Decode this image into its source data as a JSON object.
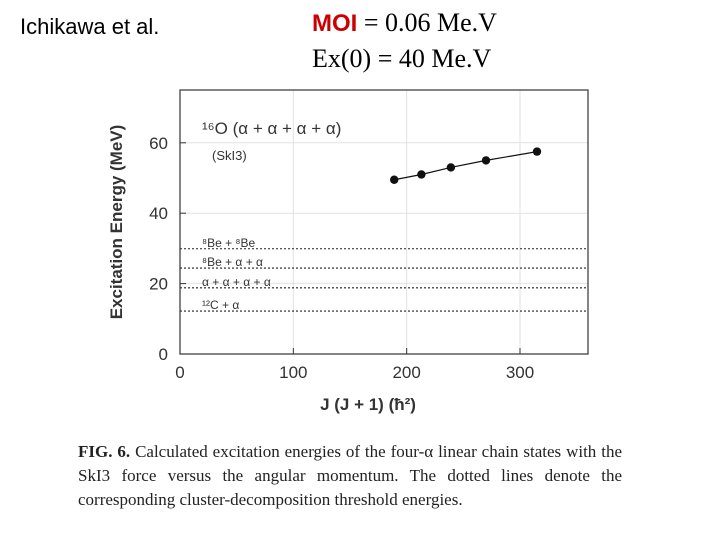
{
  "header": {
    "author": "Ichikawa et al.",
    "moi_label": "MOI",
    "moi_value": "= 0.06 Me.V",
    "ex_line": "Ex(0) = 40 Me.V"
  },
  "caption": {
    "fig_label": "FIG. 6.",
    "text": "Calculated excitation energies of the four-α linear chain states with the SkI3 force versus the angular momentum. The dotted lines denote the corresponding cluster-decomposition threshold energies."
  },
  "chart_data": {
    "type": "scatter",
    "title": "",
    "xlabel": "J (J + 1) (ħ²)",
    "ylabel": "Excitation Energy (MeV)",
    "xlim": [
      0,
      360
    ],
    "ylim": [
      0,
      75
    ],
    "xticks": [
      "0",
      "100",
      "200",
      "300"
    ],
    "yticks": [
      "0",
      "20",
      "40",
      "60"
    ],
    "grid": true,
    "annotation_system": "¹⁶O (α + α + α + α)",
    "annotation_force": "(SkI3)",
    "series": [
      {
        "x": [
          189,
          213,
          239,
          270,
          315
        ],
        "y": [
          49.5,
          51,
          53,
          55,
          57.5
        ],
        "color": "#111111",
        "connected": true
      }
    ],
    "thresholds": [
      {
        "label": "⁸Be + ⁸Be",
        "y": 29.9
      },
      {
        "label": "⁸Be + α + α",
        "y": 24.4
      },
      {
        "label": "α + α + α + α",
        "y": 18.8
      },
      {
        "label": "¹²C + α",
        "y": 12.2
      }
    ]
  }
}
